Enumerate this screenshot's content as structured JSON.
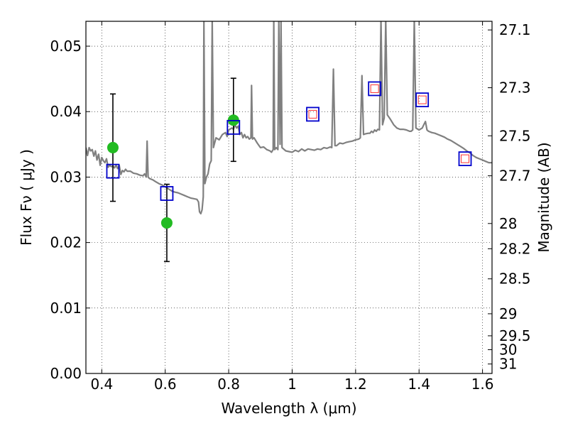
{
  "chart_data": {
    "type": "scatter",
    "title": "",
    "xlabel": "Wavelength  λ (μm)",
    "ylabel_left": "Flux  Fν  ( μJy )",
    "ylabel_right": "Magnitude (AB)",
    "xlim": [
      0.35,
      1.63
    ],
    "ylim": [
      0.0,
      0.0538
    ],
    "grid": true,
    "x_ticks": [
      0.4,
      0.6,
      0.8,
      1.0,
      1.2,
      1.4,
      1.6
    ],
    "x_tick_labels": [
      "0.4",
      "0.6",
      "0.8",
      "1",
      "1.2",
      "1.4",
      "1.6"
    ],
    "y_ticks": [
      0.0,
      0.01,
      0.02,
      0.03,
      0.04,
      0.05
    ],
    "y_tick_labels": [
      "0.00",
      "0.01",
      "0.02",
      "0.03",
      "0.04",
      "0.05"
    ],
    "right_ticks": [
      {
        "label": "27.1",
        "mag": 27.1
      },
      {
        "label": "27.3",
        "mag": 27.3
      },
      {
        "label": "27.5",
        "mag": 27.5
      },
      {
        "label": "27.7",
        "mag": 27.7
      },
      {
        "label": "28",
        "mag": 28.0
      },
      {
        "label": "28.2",
        "mag": 28.2
      },
      {
        "label": "28.5",
        "mag": 28.5
      },
      {
        "label": "29",
        "mag": 29.0
      },
      {
        "label": "29.5",
        "mag": 29.5
      },
      {
        "label": "30",
        "mag": 30.0
      },
      {
        "label": "31",
        "mag": 31.0
      }
    ],
    "series": [
      {
        "name": "model spectrum",
        "kind": "line",
        "color": "#808080",
        "points": [
          [
            0.35,
            0.0345
          ],
          [
            0.355,
            0.0333
          ],
          [
            0.36,
            0.0345
          ],
          [
            0.365,
            0.034
          ],
          [
            0.37,
            0.0342
          ],
          [
            0.375,
            0.0332
          ],
          [
            0.38,
            0.034
          ],
          [
            0.385,
            0.0326
          ],
          [
            0.39,
            0.0335
          ],
          [
            0.395,
            0.0318
          ],
          [
            0.4,
            0.033
          ],
          [
            0.405,
            0.0325
          ],
          [
            0.41,
            0.0322
          ],
          [
            0.415,
            0.0328
          ],
          [
            0.42,
            0.0315
          ],
          [
            0.425,
            0.0318
          ],
          [
            0.43,
            0.0316
          ],
          [
            0.435,
            0.0317
          ],
          [
            0.44,
            0.0314
          ],
          [
            0.445,
            0.0318
          ],
          [
            0.45,
            0.0313
          ],
          [
            0.455,
            0.0318
          ],
          [
            0.46,
            0.0304
          ],
          [
            0.465,
            0.031
          ],
          [
            0.47,
            0.0308
          ],
          [
            0.475,
            0.0312
          ],
          [
            0.48,
            0.0309
          ],
          [
            0.49,
            0.0309
          ],
          [
            0.5,
            0.0306
          ],
          [
            0.51,
            0.0305
          ],
          [
            0.52,
            0.0303
          ],
          [
            0.53,
            0.0302
          ],
          [
            0.535,
            0.0305
          ],
          [
            0.54,
            0.03
          ],
          [
            0.543,
            0.0355
          ],
          [
            0.546,
            0.03
          ],
          [
            0.55,
            0.0298
          ],
          [
            0.56,
            0.0296
          ],
          [
            0.57,
            0.0293
          ],
          [
            0.58,
            0.029
          ],
          [
            0.59,
            0.0288
          ],
          [
            0.6,
            0.0285
          ],
          [
            0.61,
            0.0282
          ],
          [
            0.62,
            0.0279
          ],
          [
            0.63,
            0.0277
          ],
          [
            0.64,
            0.0276
          ],
          [
            0.65,
            0.0274
          ],
          [
            0.66,
            0.0272
          ],
          [
            0.67,
            0.027
          ],
          [
            0.68,
            0.0268
          ],
          [
            0.69,
            0.0267
          ],
          [
            0.7,
            0.0266
          ],
          [
            0.705,
            0.0262
          ],
          [
            0.708,
            0.0247
          ],
          [
            0.712,
            0.0244
          ],
          [
            0.716,
            0.025
          ],
          [
            0.72,
            0.027
          ],
          [
            0.722,
            0.054
          ],
          [
            0.725,
            0.029
          ],
          [
            0.73,
            0.03
          ],
          [
            0.735,
            0.0305
          ],
          [
            0.74,
            0.032
          ],
          [
            0.745,
            0.0325
          ],
          [
            0.748,
            0.054
          ],
          [
            0.752,
            0.0345
          ],
          [
            0.76,
            0.036
          ],
          [
            0.77,
            0.0357
          ],
          [
            0.78,
            0.0365
          ],
          [
            0.79,
            0.0368
          ],
          [
            0.795,
            0.0362
          ],
          [
            0.8,
            0.0372
          ],
          [
            0.81,
            0.0375
          ],
          [
            0.815,
            0.0373
          ],
          [
            0.82,
            0.038
          ],
          [
            0.825,
            0.0375
          ],
          [
            0.83,
            0.0378
          ],
          [
            0.835,
            0.0365
          ],
          [
            0.84,
            0.0368
          ],
          [
            0.845,
            0.036
          ],
          [
            0.85,
            0.0365
          ],
          [
            0.855,
            0.036
          ],
          [
            0.86,
            0.0362
          ],
          [
            0.865,
            0.0358
          ],
          [
            0.87,
            0.036
          ],
          [
            0.872,
            0.044
          ],
          [
            0.875,
            0.0358
          ],
          [
            0.88,
            0.036
          ],
          [
            0.89,
            0.0352
          ],
          [
            0.9,
            0.0345
          ],
          [
            0.91,
            0.0346
          ],
          [
            0.92,
            0.0342
          ],
          [
            0.93,
            0.034
          ],
          [
            0.935,
            0.0338
          ],
          [
            0.94,
            0.0342
          ],
          [
            0.942,
            0.054
          ],
          [
            0.945,
            0.0342
          ],
          [
            0.95,
            0.0345
          ],
          [
            0.955,
            0.0342
          ],
          [
            0.958,
            0.054
          ],
          [
            0.962,
            0.035
          ],
          [
            0.965,
            0.054
          ],
          [
            0.968,
            0.0345
          ],
          [
            0.98,
            0.034
          ],
          [
            0.99,
            0.0339
          ],
          [
            1.0,
            0.0338
          ],
          [
            1.01,
            0.0341
          ],
          [
            1.02,
            0.0339
          ],
          [
            1.03,
            0.0343
          ],
          [
            1.04,
            0.034
          ],
          [
            1.05,
            0.0343
          ],
          [
            1.06,
            0.0342
          ],
          [
            1.07,
            0.0341
          ],
          [
            1.08,
            0.0343
          ],
          [
            1.09,
            0.0342
          ],
          [
            1.1,
            0.0345
          ],
          [
            1.11,
            0.0344
          ],
          [
            1.12,
            0.0346
          ],
          [
            1.125,
            0.0345
          ],
          [
            1.13,
            0.0465
          ],
          [
            1.135,
            0.0348
          ],
          [
            1.14,
            0.0348
          ],
          [
            1.15,
            0.0352
          ],
          [
            1.16,
            0.0351
          ],
          [
            1.17,
            0.0353
          ],
          [
            1.18,
            0.0354
          ],
          [
            1.19,
            0.0355
          ],
          [
            1.2,
            0.0357
          ],
          [
            1.21,
            0.0358
          ],
          [
            1.215,
            0.036
          ],
          [
            1.22,
            0.0455
          ],
          [
            1.225,
            0.0365
          ],
          [
            1.23,
            0.0366
          ],
          [
            1.24,
            0.0367
          ],
          [
            1.245,
            0.0367
          ],
          [
            1.25,
            0.037
          ],
          [
            1.255,
            0.0368
          ],
          [
            1.26,
            0.0372
          ],
          [
            1.265,
            0.037
          ],
          [
            1.27,
            0.0373
          ],
          [
            1.275,
            0.0372
          ],
          [
            1.28,
            0.054
          ],
          [
            1.285,
            0.038
          ],
          [
            1.29,
            0.039
          ],
          [
            1.295,
            0.054
          ],
          [
            1.3,
            0.0395
          ],
          [
            1.31,
            0.0388
          ],
          [
            1.32,
            0.038
          ],
          [
            1.33,
            0.0375
          ],
          [
            1.34,
            0.0373
          ],
          [
            1.35,
            0.0373
          ],
          [
            1.36,
            0.0372
          ],
          [
            1.37,
            0.037
          ],
          [
            1.375,
            0.037
          ],
          [
            1.38,
            0.0372
          ],
          [
            1.385,
            0.054
          ],
          [
            1.39,
            0.0375
          ],
          [
            1.4,
            0.0372
          ],
          [
            1.41,
            0.0375
          ],
          [
            1.415,
            0.038
          ],
          [
            1.42,
            0.0385
          ],
          [
            1.425,
            0.0372
          ],
          [
            1.43,
            0.037
          ],
          [
            1.44,
            0.0368
          ],
          [
            1.45,
            0.0367
          ],
          [
            1.46,
            0.0365
          ],
          [
            1.47,
            0.0363
          ],
          [
            1.48,
            0.0361
          ],
          [
            1.49,
            0.0358
          ],
          [
            1.5,
            0.0356
          ],
          [
            1.51,
            0.0353
          ],
          [
            1.52,
            0.035
          ],
          [
            1.53,
            0.0347
          ],
          [
            1.54,
            0.0344
          ],
          [
            1.55,
            0.034
          ],
          [
            1.56,
            0.0337
          ],
          [
            1.57,
            0.0333
          ],
          [
            1.58,
            0.033
          ],
          [
            1.59,
            0.0328
          ],
          [
            1.6,
            0.0326
          ],
          [
            1.61,
            0.0324
          ],
          [
            1.62,
            0.0322
          ],
          [
            1.63,
            0.0322
          ]
        ]
      },
      {
        "name": "observed photometry",
        "kind": "errorbar",
        "color": "#000000",
        "points": [
          {
            "x": 0.435,
            "y": 0.0345,
            "lo": 0.0263,
            "hi": 0.0427
          },
          {
            "x": 0.605,
            "y": 0.023,
            "lo": 0.0171,
            "hi": 0.0289
          },
          {
            "x": 0.815,
            "y": 0.0387,
            "lo": 0.0324,
            "hi": 0.0451
          }
        ]
      },
      {
        "name": "observed flux",
        "kind": "dot",
        "color": "#22bb22",
        "points": [
          [
            0.435,
            0.0345
          ],
          [
            0.605,
            0.023
          ],
          [
            0.815,
            0.0387
          ]
        ]
      },
      {
        "name": "model flux",
        "kind": "square",
        "color": "#0000cc",
        "points": [
          [
            0.435,
            0.0309
          ],
          [
            0.605,
            0.0275
          ],
          [
            0.815,
            0.0376
          ],
          [
            1.065,
            0.0396
          ],
          [
            1.26,
            0.0435
          ],
          [
            1.41,
            0.0418
          ],
          [
            1.545,
            0.0328
          ]
        ]
      },
      {
        "name": "model flux (inner)",
        "kind": "small-square",
        "color": "#ff3333",
        "points": [
          [
            1.065,
            0.0396
          ],
          [
            1.26,
            0.0435
          ],
          [
            1.41,
            0.0418
          ],
          [
            1.545,
            0.0328
          ]
        ]
      }
    ]
  }
}
